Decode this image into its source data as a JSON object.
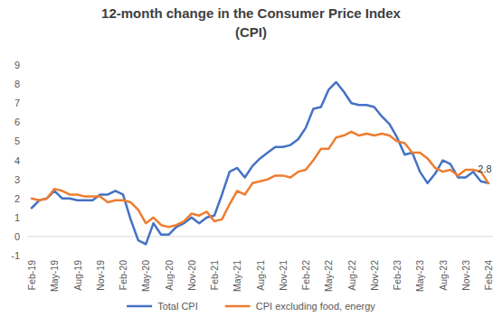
{
  "chart_data": {
    "type": "line",
    "title": "12-month change in the Consumer Price Index (CPI)",
    "categories": [
      "Feb-19",
      null,
      null,
      "May-19",
      null,
      null,
      "Aug-19",
      null,
      null,
      "Nov-19",
      null,
      null,
      "Feb-20",
      null,
      null,
      "May-20",
      null,
      null,
      "Aug-20",
      null,
      null,
      "Nov-20",
      null,
      null,
      "Feb-21",
      null,
      null,
      "May-21",
      null,
      null,
      "Aug-21",
      null,
      null,
      "Nov-21",
      null,
      null,
      "Feb-22",
      null,
      null,
      "May-22",
      null,
      null,
      "Aug-22",
      null,
      null,
      "Nov-22",
      null,
      null,
      "Feb-23",
      null,
      null,
      "May-23",
      null,
      null,
      "Aug-23",
      null,
      null,
      "Nov-23",
      null,
      null,
      "Feb-24"
    ],
    "series": [
      {
        "name": "Total CPI",
        "color": "#4472c4",
        "values": [
          1.5,
          1.9,
          2.0,
          2.4,
          2.0,
          2.0,
          1.9,
          1.9,
          1.9,
          2.2,
          2.2,
          2.4,
          2.2,
          0.9,
          -0.2,
          -0.4,
          0.7,
          0.1,
          0.1,
          0.5,
          0.7,
          1.0,
          0.7,
          1.0,
          1.1,
          2.2,
          3.4,
          3.6,
          3.1,
          3.7,
          4.1,
          4.4,
          4.7,
          4.7,
          4.8,
          5.1,
          5.7,
          6.7,
          6.8,
          7.7,
          8.1,
          7.6,
          7.0,
          6.9,
          6.9,
          6.8,
          6.3,
          5.9,
          5.2,
          4.3,
          4.4,
          3.4,
          2.8,
          3.3,
          4.0,
          3.8,
          3.1,
          3.1,
          3.4,
          2.9,
          2.8
        ]
      },
      {
        "name": "CPI excluding food, energy",
        "color": "#ed7d31",
        "values": [
          2.0,
          1.9,
          2.0,
          2.5,
          2.4,
          2.2,
          2.2,
          2.1,
          2.1,
          2.1,
          1.8,
          1.9,
          1.9,
          1.8,
          1.4,
          0.7,
          1.0,
          0.6,
          0.5,
          0.6,
          0.8,
          1.2,
          1.1,
          1.3,
          0.8,
          0.9,
          1.7,
          2.4,
          2.2,
          2.8,
          2.9,
          3.0,
          3.2,
          3.2,
          3.1,
          3.4,
          3.5,
          4.0,
          4.6,
          4.6,
          5.2,
          5.3,
          5.5,
          5.3,
          5.4,
          5.3,
          5.4,
          5.3,
          5.0,
          4.9,
          4.4,
          4.4,
          4.1,
          3.6,
          3.4,
          3.5,
          3.2,
          3.5,
          3.5,
          3.4,
          2.8
        ]
      }
    ],
    "annotations": [
      {
        "text": "2.8"
      }
    ],
    "ylim": [
      -1,
      9
    ],
    "yticks": [
      -1,
      0,
      1,
      2,
      3,
      4,
      5,
      6,
      7,
      8,
      9
    ],
    "grid": false,
    "legend": "bottom"
  }
}
